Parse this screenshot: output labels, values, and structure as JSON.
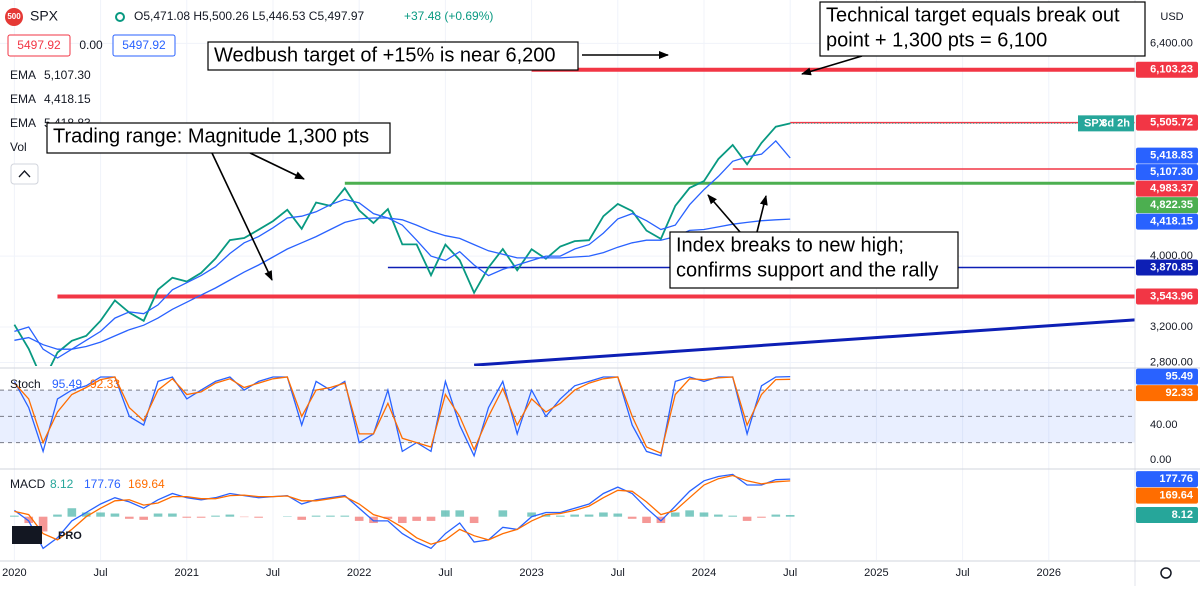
{
  "header": {
    "icon": "500",
    "symbol": "SPX",
    "ohlc": "O5,471.08 H5,500.26 L5,446.53 C5,497.97",
    "change": "+37.48 (+0.69%)",
    "bid": "5497.92",
    "spread": "0.00",
    "ask": "5497.92",
    "volume": "Vol",
    "currency": "USD",
    "logo": "PRO"
  },
  "annotations": [
    {
      "lines": [
        "Wedbush target of +15% is near 6,200"
      ]
    },
    {
      "lines": [
        "Technical target equals break out",
        "point + 1,300 pts = 6,100"
      ]
    },
    {
      "lines": [
        "Trading range: Magnitude 1,300 pts"
      ]
    },
    {
      "lines": [
        "Index breaks to new high;",
        "confirms support and the rally"
      ]
    }
  ],
  "chart_data": [
    {
      "type": "line",
      "x": [
        "2020-01",
        "2020-02",
        "2020-03",
        "2020-04",
        "2020-05",
        "2020-06",
        "2020-07",
        "2020-08",
        "2020-09",
        "2020-10",
        "2020-11",
        "2020-12",
        "2021-01",
        "2021-02",
        "2021-03",
        "2021-04",
        "2021-05",
        "2021-06",
        "2021-07",
        "2021-08",
        "2021-09",
        "2021-10",
        "2021-11",
        "2021-12",
        "2022-01",
        "2022-02",
        "2022-03",
        "2022-04",
        "2022-05",
        "2022-06",
        "2022-07",
        "2022-08",
        "2022-09",
        "2022-10",
        "2022-11",
        "2022-12",
        "2023-01",
        "2023-02",
        "2023-03",
        "2023-04",
        "2023-05",
        "2023-06",
        "2023-07",
        "2023-08",
        "2023-09",
        "2023-10",
        "2023-11",
        "2023-12",
        "2024-01",
        "2024-02",
        "2024-03",
        "2024-04",
        "2024-05",
        "2024-06",
        "2024-07"
      ],
      "series": [
        {
          "name": "SPX",
          "color": "#089981",
          "values": [
            3226,
            2954,
            2585,
            2912,
            3044,
            3100,
            3271,
            3500,
            3363,
            3270,
            3622,
            3756,
            3714,
            3811,
            3973,
            4181,
            4204,
            4298,
            4395,
            4523,
            4308,
            4605,
            4567,
            4766,
            4516,
            4374,
            4530,
            4132,
            4132,
            3785,
            4130,
            3955,
            3586,
            3872,
            4080,
            3840,
            4077,
            3970,
            4109,
            4169,
            4180,
            4450,
            4589,
            4508,
            4288,
            4194,
            4568,
            4770,
            4846,
            5096,
            5254,
            5036,
            5278,
            5460,
            5497.97
          ]
        },
        {
          "name": "EMA",
          "color": "#2962ff",
          "last_label": "5,107.30",
          "values": [
            3150,
            3200,
            2950,
            2850,
            2950,
            3050,
            3150,
            3300,
            3370,
            3350,
            3450,
            3620,
            3700,
            3780,
            3880,
            4030,
            4150,
            4220,
            4320,
            4430,
            4450,
            4500,
            4580,
            4640,
            4600,
            4480,
            4430,
            4350,
            4180,
            4000,
            3950,
            4050,
            3900,
            3780,
            3850,
            3900,
            3950,
            4000,
            4000,
            4080,
            4130,
            4260,
            4420,
            4480,
            4400,
            4300,
            4350,
            4580,
            4750,
            4900,
            5070,
            5120,
            5150,
            5300,
            5107.3
          ]
        },
        {
          "name": "EMA",
          "color": "#2962ff",
          "last_label": "4,418.15",
          "values": [
            3050,
            3080,
            3000,
            2950,
            2950,
            2980,
            3030,
            3100,
            3170,
            3220,
            3300,
            3400,
            3480,
            3560,
            3640,
            3730,
            3820,
            3900,
            3990,
            4080,
            4150,
            4220,
            4300,
            4380,
            4420,
            4430,
            4430,
            4410,
            4350,
            4280,
            4230,
            4200,
            4130,
            4060,
            4020,
            3980,
            3980,
            3980,
            3980,
            3990,
            4000,
            4040,
            4100,
            4150,
            4180,
            4180,
            4220,
            4290,
            4300,
            4330,
            4360,
            4380,
            4400,
            4410,
            4418.15
          ]
        }
      ],
      "tags": [
        {
          "name": "EMA",
          "value": 5418.83,
          "label": "5,418.83",
          "color": "#2962ff"
        }
      ],
      "price_tag": {
        "name": "SPX",
        "countdown": "3d 2h",
        "color": "#26a69a"
      },
      "levels": [
        {
          "value": 6103.23,
          "label": "6,103.23",
          "color": "#f23645",
          "start": "2023-01"
        },
        {
          "value": 5505.72,
          "label": "5,505.72",
          "color": "#f23645",
          "start": "2024-07"
        },
        {
          "value": 4983.37,
          "label": "4,983.37",
          "color": "#f23645",
          "start": "2024-03"
        },
        {
          "value": 4822.35,
          "label": "4,822.35",
          "color": "#4caf50",
          "start": "2021-12"
        },
        {
          "value": 3870.85,
          "label": "3,870.85",
          "color": "#0d1fb5",
          "start": "2022-03"
        },
        {
          "value": 3543.96,
          "label": "3,543.96",
          "color": "#f23645",
          "start": "2020-04"
        }
      ],
      "trendline": {
        "x": [
          "2022-09",
          "2026-07"
        ],
        "values": [
          2770,
          3280
        ],
        "color": "#0d1fb5"
      },
      "xlim": [
        "2019-12",
        "2026-07"
      ],
      "xticks": [
        {
          "value": "2020-01",
          "label": "2020"
        },
        {
          "value": "2020-07",
          "label": "Jul"
        },
        {
          "value": "2021-01",
          "label": "2021"
        },
        {
          "value": "2021-07",
          "label": "Jul"
        },
        {
          "value": "2022-01",
          "label": "2022"
        },
        {
          "value": "2022-07",
          "label": "Jul"
        },
        {
          "value": "2023-01",
          "label": "2023"
        },
        {
          "value": "2023-07",
          "label": "Jul"
        },
        {
          "value": "2024-01",
          "label": "2024"
        },
        {
          "value": "2024-07",
          "label": "Jul"
        },
        {
          "value": "2025-01",
          "label": "2025"
        },
        {
          "value": "2025-07",
          "label": "Jul"
        },
        {
          "value": "2026-01",
          "label": "2026"
        }
      ],
      "ylim": [
        2760,
        6890
      ],
      "yticks": [
        {
          "value": 2800,
          "label": "2,800.00"
        },
        {
          "value": 3200,
          "label": "3,200.00"
        },
        {
          "value": 4000,
          "label": "4,000.00"
        },
        {
          "value": 6400,
          "label": "6,400.00"
        }
      ],
      "grid": true
    },
    {
      "type": "line",
      "title": "Stoch",
      "x": [
        "2020-01",
        "2020-02",
        "2020-03",
        "2020-04",
        "2020-05",
        "2020-06",
        "2020-07",
        "2020-08",
        "2020-09",
        "2020-10",
        "2020-11",
        "2020-12",
        "2021-01",
        "2021-02",
        "2021-03",
        "2021-04",
        "2021-05",
        "2021-06",
        "2021-07",
        "2021-08",
        "2021-09",
        "2021-10",
        "2021-11",
        "2021-12",
        "2022-01",
        "2022-02",
        "2022-03",
        "2022-04",
        "2022-05",
        "2022-06",
        "2022-07",
        "2022-08",
        "2022-09",
        "2022-10",
        "2022-11",
        "2022-12",
        "2023-01",
        "2023-02",
        "2023-03",
        "2023-04",
        "2023-05",
        "2023-06",
        "2023-07",
        "2023-08",
        "2023-09",
        "2023-10",
        "2023-11",
        "2023-12",
        "2024-01",
        "2024-02",
        "2024-03",
        "2024-04",
        "2024-05",
        "2024-06",
        "2024-07"
      ],
      "series": [
        {
          "name": "%K",
          "color": "#2962ff",
          "values": [
            90,
            60,
            10,
            70,
            80,
            85,
            95,
            95,
            50,
            40,
            90,
            95,
            70,
            80,
            90,
            95,
            80,
            90,
            95,
            95,
            40,
            90,
            80,
            90,
            20,
            30,
            80,
            10,
            20,
            10,
            90,
            40,
            5,
            60,
            90,
            30,
            80,
            50,
            70,
            85,
            90,
            95,
            95,
            40,
            10,
            5,
            90,
            95,
            90,
            95,
            95,
            30,
            85,
            95,
            95.49
          ]
        },
        {
          "name": "%D",
          "color": "#ff6d00",
          "values": [
            88,
            70,
            20,
            55,
            75,
            83,
            92,
            95,
            60,
            45,
            80,
            93,
            75,
            78,
            88,
            93,
            83,
            88,
            93,
            95,
            50,
            80,
            83,
            88,
            30,
            30,
            65,
            25,
            20,
            15,
            75,
            50,
            12,
            50,
            82,
            40,
            70,
            55,
            65,
            80,
            88,
            93,
            95,
            50,
            15,
            8,
            75,
            93,
            92,
            94,
            95,
            40,
            75,
            92,
            92.33
          ]
        }
      ],
      "bands": [
        20,
        50,
        80
      ],
      "ylim": [
        -9,
        103
      ],
      "yticks": [
        {
          "value": 0,
          "label": "0.00"
        },
        {
          "value": 40,
          "label": "40.00"
        }
      ]
    },
    {
      "type": "line",
      "title": "MACD",
      "x": [
        "2020-01",
        "2020-02",
        "2020-03",
        "2020-04",
        "2020-05",
        "2020-06",
        "2020-07",
        "2020-08",
        "2020-09",
        "2020-10",
        "2020-11",
        "2020-12",
        "2021-01",
        "2021-02",
        "2021-03",
        "2021-04",
        "2021-05",
        "2021-06",
        "2021-07",
        "2021-08",
        "2021-09",
        "2021-10",
        "2021-11",
        "2021-12",
        "2022-01",
        "2022-02",
        "2022-03",
        "2022-04",
        "2022-05",
        "2022-06",
        "2022-07",
        "2022-08",
        "2022-09",
        "2022-10",
        "2022-11",
        "2022-12",
        "2023-01",
        "2023-02",
        "2023-03",
        "2023-04",
        "2023-05",
        "2023-06",
        "2023-07",
        "2023-08",
        "2023-09",
        "2023-10",
        "2023-11",
        "2023-12",
        "2024-01",
        "2024-02",
        "2024-03",
        "2024-04",
        "2024-05",
        "2024-06",
        "2024-07"
      ],
      "series": [
        {
          "name": "Histogram",
          "type": "bar",
          "color": "#26a69a",
          "negative_color": "#ef5350",
          "values": [
            5,
            -30,
            -70,
            10,
            40,
            20,
            20,
            15,
            -10,
            -15,
            15,
            15,
            -5,
            -5,
            5,
            10,
            -2,
            -5,
            0,
            2,
            -15,
            5,
            5,
            5,
            -20,
            -30,
            -10,
            -30,
            -20,
            -20,
            30,
            30,
            -30,
            0,
            30,
            0,
            20,
            10,
            5,
            10,
            10,
            20,
            15,
            -10,
            -30,
            -30,
            20,
            30,
            20,
            10,
            5,
            -20,
            -5,
            10,
            8.12
          ]
        },
        {
          "name": "MACD",
          "color": "#2962ff",
          "values": [
            30,
            -20,
            -150,
            -100,
            -20,
            20,
            60,
            90,
            70,
            40,
            80,
            110,
            90,
            80,
            90,
            110,
            100,
            90,
            95,
            100,
            60,
            80,
            90,
            100,
            40,
            -20,
            -20,
            -80,
            -120,
            -150,
            -80,
            -30,
            -120,
            -110,
            -50,
            -60,
            0,
            20,
            20,
            40,
            60,
            110,
            140,
            110,
            40,
            -20,
            50,
            120,
            170,
            190,
            200,
            150,
            150,
            175,
            177.76
          ]
        },
        {
          "name": "Signal",
          "color": "#ff6d00",
          "values": [
            25,
            10,
            -80,
            -110,
            -60,
            0,
            40,
            75,
            80,
            55,
            65,
            95,
            95,
            85,
            85,
            100,
            102,
            95,
            95,
            98,
            75,
            75,
            85,
            95,
            60,
            10,
            -10,
            -50,
            -100,
            -130,
            -110,
            -60,
            -90,
            -110,
            -80,
            -60,
            -20,
            10,
            15,
            30,
            50,
            90,
            125,
            120,
            70,
            10,
            30,
            90,
            150,
            180,
            195,
            170,
            155,
            165,
            169.64
          ]
        }
      ],
      "ylim": [
        -205,
        221
      ]
    }
  ]
}
